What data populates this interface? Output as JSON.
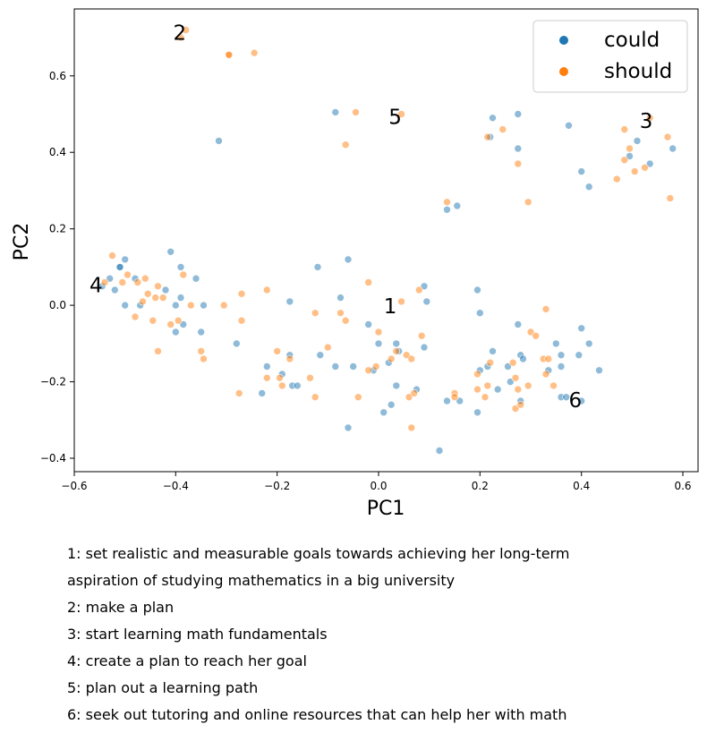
{
  "chart_data": {
    "type": "scatter",
    "xlabel": "PC1",
    "ylabel": "PC2",
    "xlim": [
      -0.6,
      0.63
    ],
    "ylim": [
      -0.435,
      0.775
    ],
    "xticks": [
      -0.6,
      -0.4,
      -0.2,
      0.0,
      0.2,
      0.4,
      0.6
    ],
    "yticks": [
      -0.4,
      -0.2,
      0.0,
      0.2,
      0.4,
      0.6
    ],
    "xtick_labels": [
      "−0.6",
      "−0.4",
      "−0.2",
      "0.0",
      "0.2",
      "0.4",
      "0.6"
    ],
    "ytick_labels": [
      "−0.4",
      "−0.2",
      "0.0",
      "0.2",
      "0.4",
      "0.6"
    ],
    "legend_position": "top-right",
    "grid": false,
    "series": [
      {
        "name": "could",
        "color": "#1f77b4",
        "points": [
          [
            -0.53,
            0.07
          ],
          [
            -0.51,
            0.1
          ],
          [
            -0.5,
            0.12
          ],
          [
            -0.52,
            0.04
          ],
          [
            -0.5,
            0.0
          ],
          [
            -0.51,
            0.1
          ],
          [
            -0.47,
            0.0
          ],
          [
            -0.545,
            0.05
          ],
          [
            -0.48,
            0.07
          ],
          [
            -0.41,
            0.14
          ],
          [
            -0.42,
            0.04
          ],
          [
            -0.39,
            0.1
          ],
          [
            -0.36,
            0.07
          ],
          [
            -0.39,
            0.02
          ],
          [
            -0.4,
            0.0
          ],
          [
            -0.4,
            -0.07
          ],
          [
            -0.385,
            -0.05
          ],
          [
            -0.35,
            -0.07
          ],
          [
            -0.345,
            0.0
          ],
          [
            -0.315,
            0.43
          ],
          [
            -0.28,
            -0.1
          ],
          [
            -0.22,
            -0.16
          ],
          [
            -0.23,
            -0.23
          ],
          [
            -0.19,
            -0.18
          ],
          [
            -0.175,
            -0.13
          ],
          [
            -0.17,
            -0.21
          ],
          [
            -0.16,
            -0.21
          ],
          [
            -0.175,
            0.01
          ],
          [
            -0.12,
            0.1
          ],
          [
            -0.115,
            -0.13
          ],
          [
            -0.075,
            0.02
          ],
          [
            -0.085,
            -0.16
          ],
          [
            -0.06,
            0.12
          ],
          [
            -0.06,
            -0.32
          ],
          [
            -0.05,
            -0.16
          ],
          [
            -0.02,
            -0.05
          ],
          [
            -0.01,
            -0.17
          ],
          [
            -0.085,
            0.505
          ],
          [
            0.0,
            -0.1
          ],
          [
            0.01,
            -0.28
          ],
          [
            0.02,
            -0.15
          ],
          [
            0.025,
            -0.26
          ],
          [
            0.035,
            -0.1
          ],
          [
            0.035,
            -0.21
          ],
          [
            0.04,
            -0.12
          ],
          [
            0.075,
            -0.22
          ],
          [
            0.09,
            0.05
          ],
          [
            0.095,
            0.01
          ],
          [
            0.09,
            -0.11
          ],
          [
            0.12,
            -0.38
          ],
          [
            0.135,
            0.25
          ],
          [
            0.155,
            0.26
          ],
          [
            0.135,
            -0.25
          ],
          [
            0.16,
            -0.25
          ],
          [
            0.195,
            0.04
          ],
          [
            0.2,
            -0.02
          ],
          [
            0.2,
            -0.17
          ],
          [
            0.195,
            -0.28
          ],
          [
            0.215,
            -0.16
          ],
          [
            0.22,
            0.44
          ],
          [
            0.225,
            0.49
          ],
          [
            0.225,
            -0.12
          ],
          [
            0.235,
            -0.22
          ],
          [
            0.255,
            -0.16
          ],
          [
            0.26,
            -0.2
          ],
          [
            0.275,
            0.41
          ],
          [
            0.275,
            0.5
          ],
          [
            0.275,
            -0.05
          ],
          [
            0.28,
            -0.13
          ],
          [
            0.285,
            -0.14
          ],
          [
            0.28,
            -0.25
          ],
          [
            0.335,
            -0.17
          ],
          [
            0.35,
            -0.1
          ],
          [
            0.36,
            -0.13
          ],
          [
            0.36,
            -0.16
          ],
          [
            0.36,
            -0.24
          ],
          [
            0.37,
            -0.24
          ],
          [
            0.375,
            0.47
          ],
          [
            0.395,
            -0.13
          ],
          [
            0.4,
            0.35
          ],
          [
            0.4,
            -0.06
          ],
          [
            0.4,
            -0.25
          ],
          [
            0.415,
            0.31
          ],
          [
            0.415,
            -0.1
          ],
          [
            0.435,
            -0.17
          ],
          [
            0.495,
            0.39
          ],
          [
            0.51,
            0.43
          ],
          [
            0.535,
            0.37
          ],
          [
            0.58,
            0.41
          ]
        ]
      },
      {
        "name": "should",
        "color": "#ff7f0e",
        "points": [
          [
            -0.39,
            0.7
          ],
          [
            -0.38,
            0.72
          ],
          [
            -0.295,
            0.655
          ],
          [
            -0.295,
            0.655
          ],
          [
            -0.245,
            0.66
          ],
          [
            -0.525,
            0.13
          ],
          [
            -0.54,
            0.06
          ],
          [
            -0.505,
            0.06
          ],
          [
            -0.495,
            0.08
          ],
          [
            -0.48,
            -0.03
          ],
          [
            -0.475,
            0.06
          ],
          [
            -0.465,
            0.01
          ],
          [
            -0.46,
            0.07
          ],
          [
            -0.455,
            0.03
          ],
          [
            -0.445,
            -0.04
          ],
          [
            -0.44,
            0.02
          ],
          [
            -0.435,
            0.05
          ],
          [
            -0.435,
            -0.12
          ],
          [
            -0.425,
            0.02
          ],
          [
            -0.41,
            -0.05
          ],
          [
            -0.395,
            -0.04
          ],
          [
            -0.385,
            0.08
          ],
          [
            -0.37,
            0.0
          ],
          [
            -0.35,
            -0.12
          ],
          [
            -0.345,
            -0.14
          ],
          [
            -0.305,
            0.0
          ],
          [
            -0.27,
            0.03
          ],
          [
            -0.27,
            -0.04
          ],
          [
            -0.275,
            -0.23
          ],
          [
            -0.22,
            0.04
          ],
          [
            -0.22,
            -0.19
          ],
          [
            -0.2,
            -0.12
          ],
          [
            -0.195,
            -0.19
          ],
          [
            -0.19,
            -0.21
          ],
          [
            -0.175,
            -0.14
          ],
          [
            -0.135,
            -0.19
          ],
          [
            -0.125,
            -0.24
          ],
          [
            -0.125,
            -0.02
          ],
          [
            -0.1,
            -0.11
          ],
          [
            -0.075,
            -0.02
          ],
          [
            -0.065,
            -0.04
          ],
          [
            -0.065,
            0.42
          ],
          [
            -0.045,
            0.505
          ],
          [
            -0.04,
            -0.24
          ],
          [
            -0.02,
            0.06
          ],
          [
            -0.02,
            -0.17
          ],
          [
            -0.005,
            -0.16
          ],
          [
            0.0,
            -0.07
          ],
          [
            0.025,
            -0.14
          ],
          [
            0.035,
            -0.12
          ],
          [
            0.045,
            0.01
          ],
          [
            0.045,
            0.5
          ],
          [
            0.055,
            -0.13
          ],
          [
            0.06,
            -0.24
          ],
          [
            0.065,
            -0.32
          ],
          [
            0.065,
            -0.14
          ],
          [
            0.07,
            -0.23
          ],
          [
            0.08,
            0.04
          ],
          [
            0.085,
            -0.08
          ],
          [
            0.135,
            0.27
          ],
          [
            0.15,
            -0.23
          ],
          [
            0.15,
            -0.24
          ],
          [
            0.195,
            -0.18
          ],
          [
            0.195,
            -0.22
          ],
          [
            0.21,
            -0.24
          ],
          [
            0.215,
            -0.21
          ],
          [
            0.215,
            0.44
          ],
          [
            0.22,
            -0.15
          ],
          [
            0.245,
            0.46
          ],
          [
            0.265,
            -0.15
          ],
          [
            0.27,
            -0.19
          ],
          [
            0.27,
            -0.27
          ],
          [
            0.275,
            0.37
          ],
          [
            0.275,
            -0.22
          ],
          [
            0.28,
            -0.26
          ],
          [
            0.295,
            0.27
          ],
          [
            0.295,
            -0.21
          ],
          [
            0.3,
            -0.07
          ],
          [
            0.31,
            -0.08
          ],
          [
            0.325,
            -0.14
          ],
          [
            0.33,
            -0.18
          ],
          [
            0.33,
            -0.01
          ],
          [
            0.335,
            -0.14
          ],
          [
            0.345,
            -0.21
          ],
          [
            0.47,
            0.33
          ],
          [
            0.485,
            0.38
          ],
          [
            0.485,
            0.46
          ],
          [
            0.495,
            0.41
          ],
          [
            0.505,
            0.35
          ],
          [
            0.525,
            0.36
          ],
          [
            0.535,
            0.49
          ],
          [
            0.57,
            0.44
          ],
          [
            0.575,
            0.28
          ]
        ]
      }
    ],
    "annotations": [
      {
        "label": "1",
        "x": 0.01,
        "y": 0.0
      },
      {
        "label": "2",
        "x": -0.405,
        "y": 0.715
      },
      {
        "label": "3",
        "x": 0.515,
        "y": 0.485
      },
      {
        "label": "4",
        "x": -0.57,
        "y": 0.055
      },
      {
        "label": "5",
        "x": 0.02,
        "y": 0.495
      },
      {
        "label": "6",
        "x": 0.375,
        "y": -0.245
      }
    ]
  },
  "captions": [
    "1: set realistic and measurable goals towards achieving her long-term",
    "aspiration of studying mathematics in a big university",
    "2: make a plan",
    "3: start learning math fundamentals",
    "4: create a plan to reach her goal",
    "5: plan out a learning path",
    "6: seek out tutoring and online resources that can help her with math"
  ]
}
